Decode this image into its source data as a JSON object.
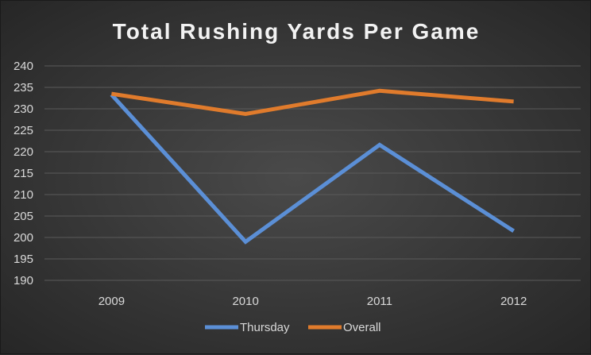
{
  "chart_data": {
    "type": "line",
    "title": "Total Rushing Yards Per Game",
    "categories": [
      "2009",
      "2010",
      "2011",
      "2012"
    ],
    "series": [
      {
        "name": "Thursday",
        "values": [
          233.3,
          199,
          221.6,
          201.5
        ],
        "color": "#5b8fd6"
      },
      {
        "name": "Overall",
        "values": [
          233.5,
          228.8,
          234.2,
          231.7
        ],
        "color": "#e07b2c"
      }
    ],
    "ylim": [
      190,
      240
    ],
    "yticks": [
      190,
      195,
      200,
      205,
      210,
      215,
      220,
      225,
      230,
      235,
      240
    ],
    "grid": true,
    "legend": "bottom",
    "xlabel": "",
    "ylabel": ""
  }
}
